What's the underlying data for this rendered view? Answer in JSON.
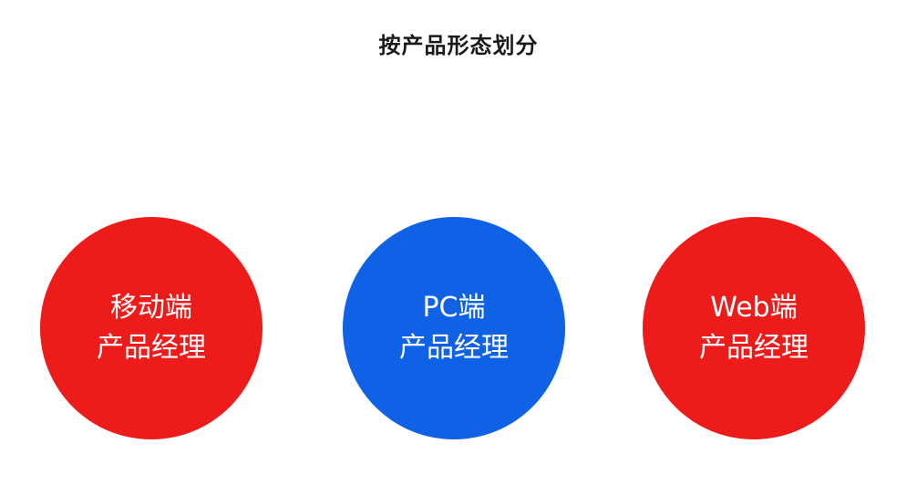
{
  "title": "按产品形态划分",
  "colors": {
    "red": "#ee1b1b",
    "blue": "#0f62e6",
    "title": "#1a1a1a",
    "background": "#ffffff"
  },
  "nodes": [
    {
      "line1": "移动端",
      "line2": "产品经理",
      "color": "#ee1b1b"
    },
    {
      "line1": "PC端",
      "line2": "产品经理",
      "color": "#0f62e6"
    },
    {
      "line1": "Web端",
      "line2": "产品经理",
      "color": "#ee1b1b"
    }
  ]
}
